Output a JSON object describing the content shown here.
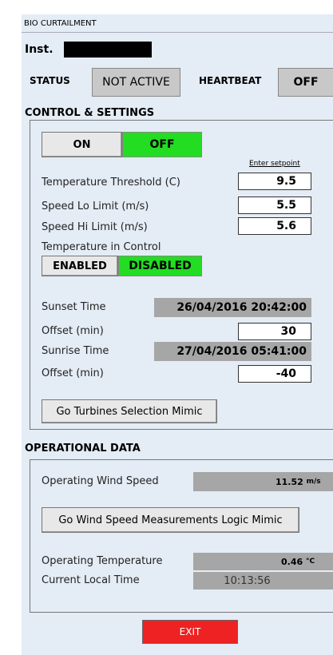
{
  "window_title": "BIO CURTAILMENT",
  "inst_label": "Inst.",
  "status": {
    "label": "STATUS",
    "value": "NOT ACTIVE",
    "heartbeat_label": "HEARTBEAT",
    "heartbeat_value": "OFF"
  },
  "control": {
    "title": "CONTROL & SETTINGS",
    "on": "ON",
    "off": "OFF",
    "enter_setpoint": "Enter setpoint",
    "settings": [
      {
        "label": "Temperature Threshold (C)",
        "value": "9.5"
      },
      {
        "label": "Speed Lo Limit (m/s)",
        "value": "5.5"
      },
      {
        "label": "Speed Hi Limit (m/s)",
        "value": "5.6"
      }
    ],
    "temp_control_label": "Temperature in Control",
    "enabled": "ENABLED",
    "disabled": "DISABLED",
    "sunset_label": "Sunset Time",
    "sunset_value": "26/04/2016 20:42:00",
    "sunset_offset_label": "Offset (min)",
    "sunset_offset_value": "30",
    "sunrise_label": "Sunrise Time",
    "sunrise_value": "27/04/2016 05:41:00",
    "sunrise_offset_label": "Offset (min)",
    "sunrise_offset_value": "-40",
    "turbines_button": "Go Turbines Selection Mimic"
  },
  "operational": {
    "title": "OPERATIONAL DATA",
    "wind_label": "Operating Wind Speed",
    "wind_value": "11.52",
    "wind_unit": "m/s",
    "wind_button": "Go Wind Speed Measurements Logic Mimic",
    "temp_label": "Operating Temperature",
    "temp_value": "0.46",
    "temp_unit": "°C",
    "time_label": "Current Local Time",
    "time_value": "10:13:56"
  },
  "exit": "EXIT"
}
